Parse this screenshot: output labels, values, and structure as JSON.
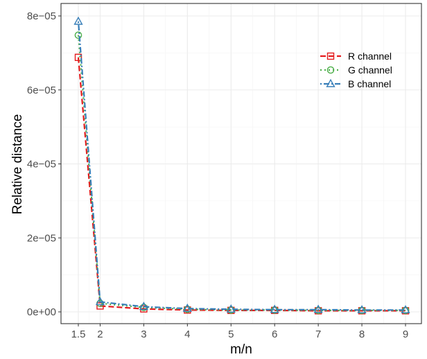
{
  "chart_data": {
    "type": "line",
    "title": "",
    "xlabel": "m/n",
    "ylabel": "Relative distance",
    "x": [
      1.5,
      2,
      3,
      4,
      5,
      6,
      7,
      8,
      9
    ],
    "xticks": [
      "1.5",
      "2",
      "3",
      "4",
      "5",
      "6",
      "7",
      "8",
      "9"
    ],
    "xlim": [
      1.5,
      9
    ],
    "yticks": [
      0,
      2e-05,
      4e-05,
      6e-05,
      8e-05
    ],
    "ytick_labels": [
      "0e+00",
      "2e−05",
      "4e−05",
      "6e−05",
      "8e−05"
    ],
    "ylim": [
      0,
      8e-05
    ],
    "grid": true,
    "legend_position": "top-right",
    "series": [
      {
        "name": "R channel",
        "color": "#e41a1c",
        "line_style": "dashed",
        "marker": "square",
        "values": [
          6.88e-05,
          1.6e-06,
          8e-07,
          5e-07,
          4e-07,
          4e-07,
          3e-07,
          3e-07,
          3e-07
        ]
      },
      {
        "name": "G channel",
        "color": "#4daf4a",
        "line_style": "dotted",
        "marker": "circle",
        "values": [
          7.48e-05,
          2.3e-06,
          1.2e-06,
          7e-07,
          5e-07,
          5e-07,
          4e-07,
          4e-07,
          4e-07
        ]
      },
      {
        "name": "B channel",
        "color": "#377eb8",
        "line_style": "dot-dash",
        "marker": "triangle",
        "values": [
          7.85e-05,
          2.7e-06,
          1.4e-06,
          9e-07,
          7e-07,
          6e-07,
          6e-07,
          5e-07,
          5e-07
        ]
      }
    ]
  }
}
